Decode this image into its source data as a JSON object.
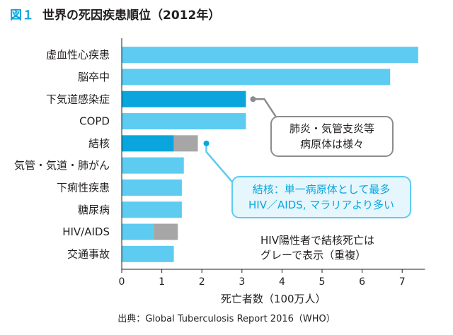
{
  "figure": {
    "number": "図１",
    "title": "世界の死因疾患順位（2012年）",
    "source": "出典：Global Tuberculosis Report 2016（WHO）"
  },
  "colors": {
    "bar": "#5ecbf1",
    "highlight": "#0aa5dc",
    "overlap": "#a6a6a6",
    "axis": "#231f20",
    "callout_gray_border": "#8c8c8c",
    "callout_blue_border": "#5ecbf1",
    "callout_blue_fill": "#e6f6fd",
    "callout_blue_text": "#0aa5dc"
  },
  "chart_data": {
    "type": "bar",
    "orientation": "horizontal",
    "xlabel": "死亡者数（100万人）",
    "xlim": [
      0,
      7.5
    ],
    "xticks": [
      0,
      1,
      2,
      3,
      4,
      5,
      6,
      7
    ],
    "grid": false,
    "categories": [
      "虚血性心疾患",
      "脳卒中",
      "下気道感染症",
      "COPD",
      "結核",
      "気管・気道・肺がん",
      "下痢性疾患",
      "糖尿病",
      "HIV/AIDS",
      "交通事故"
    ],
    "values": [
      7.4,
      6.7,
      3.1,
      3.1,
      1.3,
      1.55,
      1.5,
      1.5,
      0.8,
      1.3
    ],
    "overlap_values": [
      0,
      0,
      0,
      0,
      0.6,
      0,
      0,
      0,
      0.6,
      0
    ],
    "overlap_note": "HIV陽性者で結核死亡は\nグレーで表示（重複）",
    "highlighted": [
      "下気道感染症",
      "結核"
    ],
    "annotations": [
      {
        "category": "下気道感染症",
        "text": "肺炎・気管支炎等\n病原体は様々",
        "style": "gray"
      },
      {
        "category": "結核",
        "text": "結核：単一病原体として最多\nHIV／AIDS, マラリアより多い",
        "style": "blue"
      }
    ]
  }
}
